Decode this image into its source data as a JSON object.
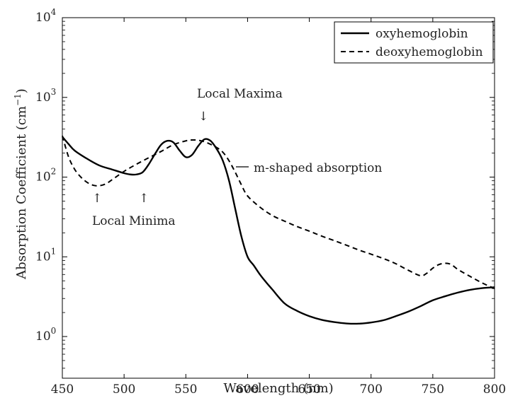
{
  "chart_data": {
    "type": "line",
    "xlabel": "Wavelength (nm)",
    "ylabel": "Absorption Coefficient (cm",
    "ylabel_sup": "−1",
    "ylabel_close": ")",
    "xlim": [
      450,
      800
    ],
    "ylim": [
      0.3,
      10000
    ],
    "y_scale": "log",
    "x_ticks": [
      450,
      500,
      550,
      600,
      650,
      700,
      750,
      800
    ],
    "y_ticks": [
      {
        "value": 1,
        "base": "10",
        "exp": "0"
      },
      {
        "value": 10,
        "base": "10",
        "exp": "1"
      },
      {
        "value": 100,
        "base": "10",
        "exp": "2"
      },
      {
        "value": 1000,
        "base": "10",
        "exp": "3"
      },
      {
        "value": 10000,
        "base": "10",
        "exp": "4"
      }
    ],
    "grid": false,
    "legend_position": "top-right",
    "series": [
      {
        "name": "oxyhemoglobin",
        "style": "solid",
        "color": "#000000",
        "x": [
          450,
          455,
          460,
          470,
          480,
          490,
          500,
          505,
          510,
          515,
          520,
          525,
          530,
          535,
          540,
          545,
          550,
          555,
          560,
          565,
          570,
          575,
          580,
          585,
          590,
          595,
          600,
          605,
          610,
          615,
          620,
          630,
          640,
          650,
          660,
          670,
          680,
          690,
          700,
          710,
          720,
          730,
          740,
          750,
          760,
          770,
          780,
          790,
          800
        ],
        "y": [
          320,
          260,
          215,
          170,
          140,
          125,
          112,
          108,
          108,
          115,
          145,
          195,
          255,
          285,
          272,
          215,
          178,
          190,
          245,
          298,
          285,
          225,
          160,
          90,
          40,
          18,
          10,
          7.8,
          6,
          4.8,
          3.9,
          2.6,
          2.1,
          1.8,
          1.62,
          1.52,
          1.46,
          1.45,
          1.5,
          1.6,
          1.8,
          2.05,
          2.4,
          2.85,
          3.2,
          3.55,
          3.85,
          4.05,
          4.15
        ]
      },
      {
        "name": "deoxyhemoglobin",
        "style": "dashed",
        "color": "#000000",
        "x": [
          450,
          455,
          460,
          465,
          470,
          475,
          480,
          485,
          490,
          500,
          510,
          520,
          530,
          540,
          550,
          555,
          560,
          565,
          570,
          575,
          580,
          585,
          590,
          595,
          600,
          610,
          620,
          630,
          640,
          650,
          660,
          670,
          680,
          690,
          700,
          710,
          720,
          730,
          740,
          745,
          750,
          755,
          760,
          765,
          770,
          780,
          790,
          800
        ],
        "y": [
          330,
          180,
          125,
          100,
          86,
          79,
          78,
          82,
          92,
          118,
          145,
          175,
          210,
          255,
          285,
          292,
          290,
          278,
          258,
          235,
          205,
          160,
          115,
          80,
          58,
          42,
          33,
          28,
          24,
          21,
          18.2,
          16,
          14,
          12.2,
          10.8,
          9.5,
          8.2,
          6.8,
          5.8,
          6.2,
          7.2,
          8.0,
          8.3,
          8.0,
          7.0,
          5.7,
          4.7,
          4.0
        ]
      }
    ],
    "annotations": {
      "local_maxima": {
        "text": "Local Maxima",
        "arrow": "↓"
      },
      "m_shaped": {
        "text": "m-shaped absorption"
      },
      "local_minima": {
        "text": "Local Minima",
        "arrow": "↑"
      }
    },
    "colors": {
      "arrow_blue": "#4a5a9a",
      "arrow_green": "#3a7a5a",
      "line": "#000000"
    }
  }
}
